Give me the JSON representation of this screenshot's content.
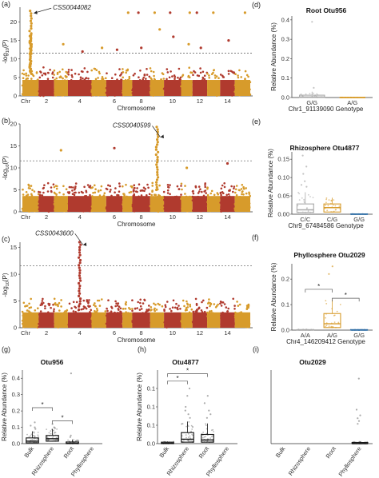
{
  "colors": {
    "odd_chr": "#d79b2b",
    "even_chr": "#b03a2e",
    "threshold": "#555555"
  },
  "chart_data": [
    {
      "id": "a",
      "type": "scatter",
      "panel_label": "(a)",
      "xlabel": "Chromosome",
      "ylabel": "-log10(P)",
      "chromosomes": [
        "Chr",
        "2",
        "4",
        "6",
        "8",
        "10",
        "12",
        "14"
      ],
      "ylim": [
        0,
        24
      ],
      "yticks": [
        0,
        5,
        10,
        15,
        20
      ],
      "threshold": 11.6,
      "annotation": {
        "text": "CSS0044082",
        "chromosome": 1,
        "y": 22.4
      },
      "peaks": [
        {
          "chromosome": 1,
          "y": 23.0
        },
        {
          "chromosome": 1,
          "y": 16.5
        }
      ]
    },
    {
      "id": "b",
      "type": "scatter",
      "panel_label": "(b)",
      "xlabel": "Chromosome",
      "ylabel": "-log10(P)",
      "chromosomes": [
        "Chr",
        "2",
        "4",
        "6",
        "8",
        "10",
        "12",
        "14"
      ],
      "ylim": [
        0,
        20
      ],
      "yticks": [
        0,
        5,
        10,
        15,
        20
      ],
      "threshold": 11.6,
      "annotation": {
        "text": "CSS0040599",
        "chromosome": 9,
        "y": 17.0
      },
      "peaks": [
        {
          "chromosome": 9,
          "y": 19.3
        }
      ]
    },
    {
      "id": "c",
      "type": "scatter",
      "panel_label": "(c)",
      "xlabel": "Chromosome",
      "ylabel": "-log10(P)",
      "chromosomes": [
        "Chr",
        "2",
        "4",
        "6",
        "8",
        "10",
        "12",
        "14"
      ],
      "ylim": [
        0,
        16
      ],
      "yticks": [
        0,
        5,
        10,
        15
      ],
      "threshold": 11.6,
      "annotation": {
        "text": "CSS0043600",
        "chromosome": 4,
        "y": 15.5
      },
      "peaks": [
        {
          "chromosome": 4,
          "y": 16.0
        }
      ]
    },
    {
      "id": "d",
      "type": "box",
      "panel_label": "(d)",
      "title": "Root Otu956",
      "ylabel": "Relative Abundance (%)",
      "xlabel": "Chr1_91139090 Genotype",
      "ylim": [
        0,
        0.42
      ],
      "yticks": [
        0.0,
        0.1,
        0.2,
        0.3,
        0.4
      ],
      "categories": [
        "G/G",
        "A/G"
      ],
      "boxes": [
        {
          "q1": 0.0,
          "median": 0.003,
          "q3": 0.012,
          "whisker_hi": 0.03,
          "outliers": [
            0.39,
            0.05
          ],
          "color": "#aaaaaa"
        },
        {
          "q1": 0.0,
          "median": 0.0,
          "q3": 0.001,
          "whisker_hi": 0.001,
          "outliers": [],
          "color": "#d79b2b"
        }
      ]
    },
    {
      "id": "e",
      "type": "box",
      "panel_label": "(e)",
      "title": "Rhizosphere Otu4877",
      "ylabel": "Relative Abundance (%)",
      "xlabel": "Chr9_67484586 Genotype",
      "ylim": [
        0,
        0.17
      ],
      "yticks": [
        0.0,
        0.05,
        0.1,
        0.15
      ],
      "categories": [
        "C/C",
        "C/G",
        "G/G"
      ],
      "boxes": [
        {
          "q1": 0.005,
          "median": 0.012,
          "q3": 0.028,
          "whisker_hi": 0.06,
          "outliers": [
            0.16,
            0.13,
            0.11,
            0.09,
            0.08,
            0.075
          ],
          "color": "#aaaaaa"
        },
        {
          "q1": 0.006,
          "median": 0.018,
          "q3": 0.028,
          "whisker_hi": 0.045,
          "outliers": [],
          "color": "#d79b2b"
        },
        {
          "q1": 0.0,
          "median": 0.0,
          "q3": 0.001,
          "whisker_hi": 0.001,
          "outliers": [],
          "color": "#2e6da4"
        }
      ]
    },
    {
      "id": "f",
      "type": "box",
      "panel_label": "(f)",
      "title": "Phyllosphere Otu2029",
      "ylabel": "Relative Abundance (%)",
      "xlabel": "Chr4_146209412 Genotype",
      "ylim": [
        0,
        0.26
      ],
      "yticks": [
        0.0,
        0.1,
        0.2
      ],
      "categories": [
        "A/A",
        "A/G",
        "G/G"
      ],
      "boxes": [
        {
          "q1": 0.0,
          "median": 0.0,
          "q3": 0.002,
          "whisker_hi": 0.004,
          "outliers": [],
          "color": "#aaaaaa"
        },
        {
          "q1": 0.01,
          "median": 0.025,
          "q3": 0.065,
          "whisker_hi": 0.12,
          "outliers": [
            0.25,
            0.22
          ],
          "color": "#d79b2b"
        },
        {
          "q1": 0.0,
          "median": 0.0,
          "q3": 0.002,
          "whisker_hi": 0.002,
          "outliers": [],
          "color": "#2e6da4"
        }
      ],
      "significance": [
        {
          "from": 0,
          "to": 1,
          "y": 0.16,
          "label": "*"
        },
        {
          "from": 1,
          "to": 2,
          "y": 0.125,
          "label": "*"
        }
      ]
    },
    {
      "id": "g",
      "type": "box",
      "panel_label": "(g)",
      "title": "Otu956",
      "ylabel": "Relative Abundance (%)",
      "ylim": [
        0,
        0.45
      ],
      "yticks": [
        0.0,
        0.1,
        0.2,
        0.3,
        0.4
      ],
      "categories": [
        "Bulk",
        "Rhizosphere",
        "Root",
        "Phyllosphere"
      ],
      "boxes": [
        {
          "q1": 0.005,
          "median": 0.015,
          "q3": 0.035,
          "whisker_hi": 0.075,
          "outliers": [
            0.13,
            0.11,
            0.1,
            0.09
          ],
          "color": "#111111"
        },
        {
          "q1": 0.015,
          "median": 0.03,
          "q3": 0.05,
          "whisker_hi": 0.09,
          "outliers": [
            0.12,
            0.1,
            0.095
          ],
          "color": "#111111"
        },
        {
          "q1": 0.0,
          "median": 0.002,
          "q3": 0.01,
          "whisker_hi": 0.025,
          "outliers": [
            0.43,
            0.05,
            0.04
          ],
          "color": "#111111"
        },
        null
      ],
      "significance": [
        {
          "from": 0,
          "to": 1,
          "y": 0.22,
          "label": "*"
        },
        {
          "from": 1,
          "to": 2,
          "y": 0.14,
          "label": "*"
        }
      ]
    },
    {
      "id": "h",
      "type": "box",
      "panel_label": "(h)",
      "title": "Otu4877",
      "ylabel": "Relative Abundance (%)",
      "ylim": [
        0,
        0.2
      ],
      "yticks": [
        0.0,
        0.05,
        0.1,
        0.15
      ],
      "categories": [
        "Bulk",
        "Rhizosphere",
        "Root",
        "Phyllosphere"
      ],
      "boxes": [
        {
          "q1": 0.0,
          "median": 0.001,
          "q3": 0.004,
          "whisker_hi": 0.006,
          "outliers": [],
          "color": "#111111"
        },
        {
          "q1": 0.004,
          "median": 0.012,
          "q3": 0.03,
          "whisker_hi": 0.06,
          "outliers": [
            0.15,
            0.13,
            0.1,
            0.09,
            0.08,
            0.07
          ],
          "color": "#111111"
        },
        {
          "q1": 0.004,
          "median": 0.01,
          "q3": 0.025,
          "whisker_hi": 0.055,
          "outliers": [
            0.13,
            0.11,
            0.09,
            0.08,
            0.07
          ],
          "color": "#111111"
        },
        null
      ],
      "significance": [
        {
          "from": 0,
          "to": 1,
          "y": 0.17,
          "label": "*"
        },
        {
          "from": 0,
          "to": 2,
          "y": 0.19,
          "label": "*"
        }
      ]
    },
    {
      "id": "i",
      "type": "box",
      "panel_label": "(i)",
      "title": "Otu2029",
      "ylim": [
        0,
        0.26
      ],
      "yticks": [],
      "categories": [
        "Bulk",
        "Rhizosphere",
        "Root",
        "Phyllosphere"
      ],
      "boxes": [
        null,
        null,
        null,
        {
          "q1": 0.0,
          "median": 0.0,
          "q3": 0.004,
          "whisker_hi": 0.008,
          "outliers": [
            0.23,
            0.12,
            0.1,
            0.09,
            0.08,
            0.07
          ],
          "color": "#111111"
        }
      ]
    }
  ]
}
